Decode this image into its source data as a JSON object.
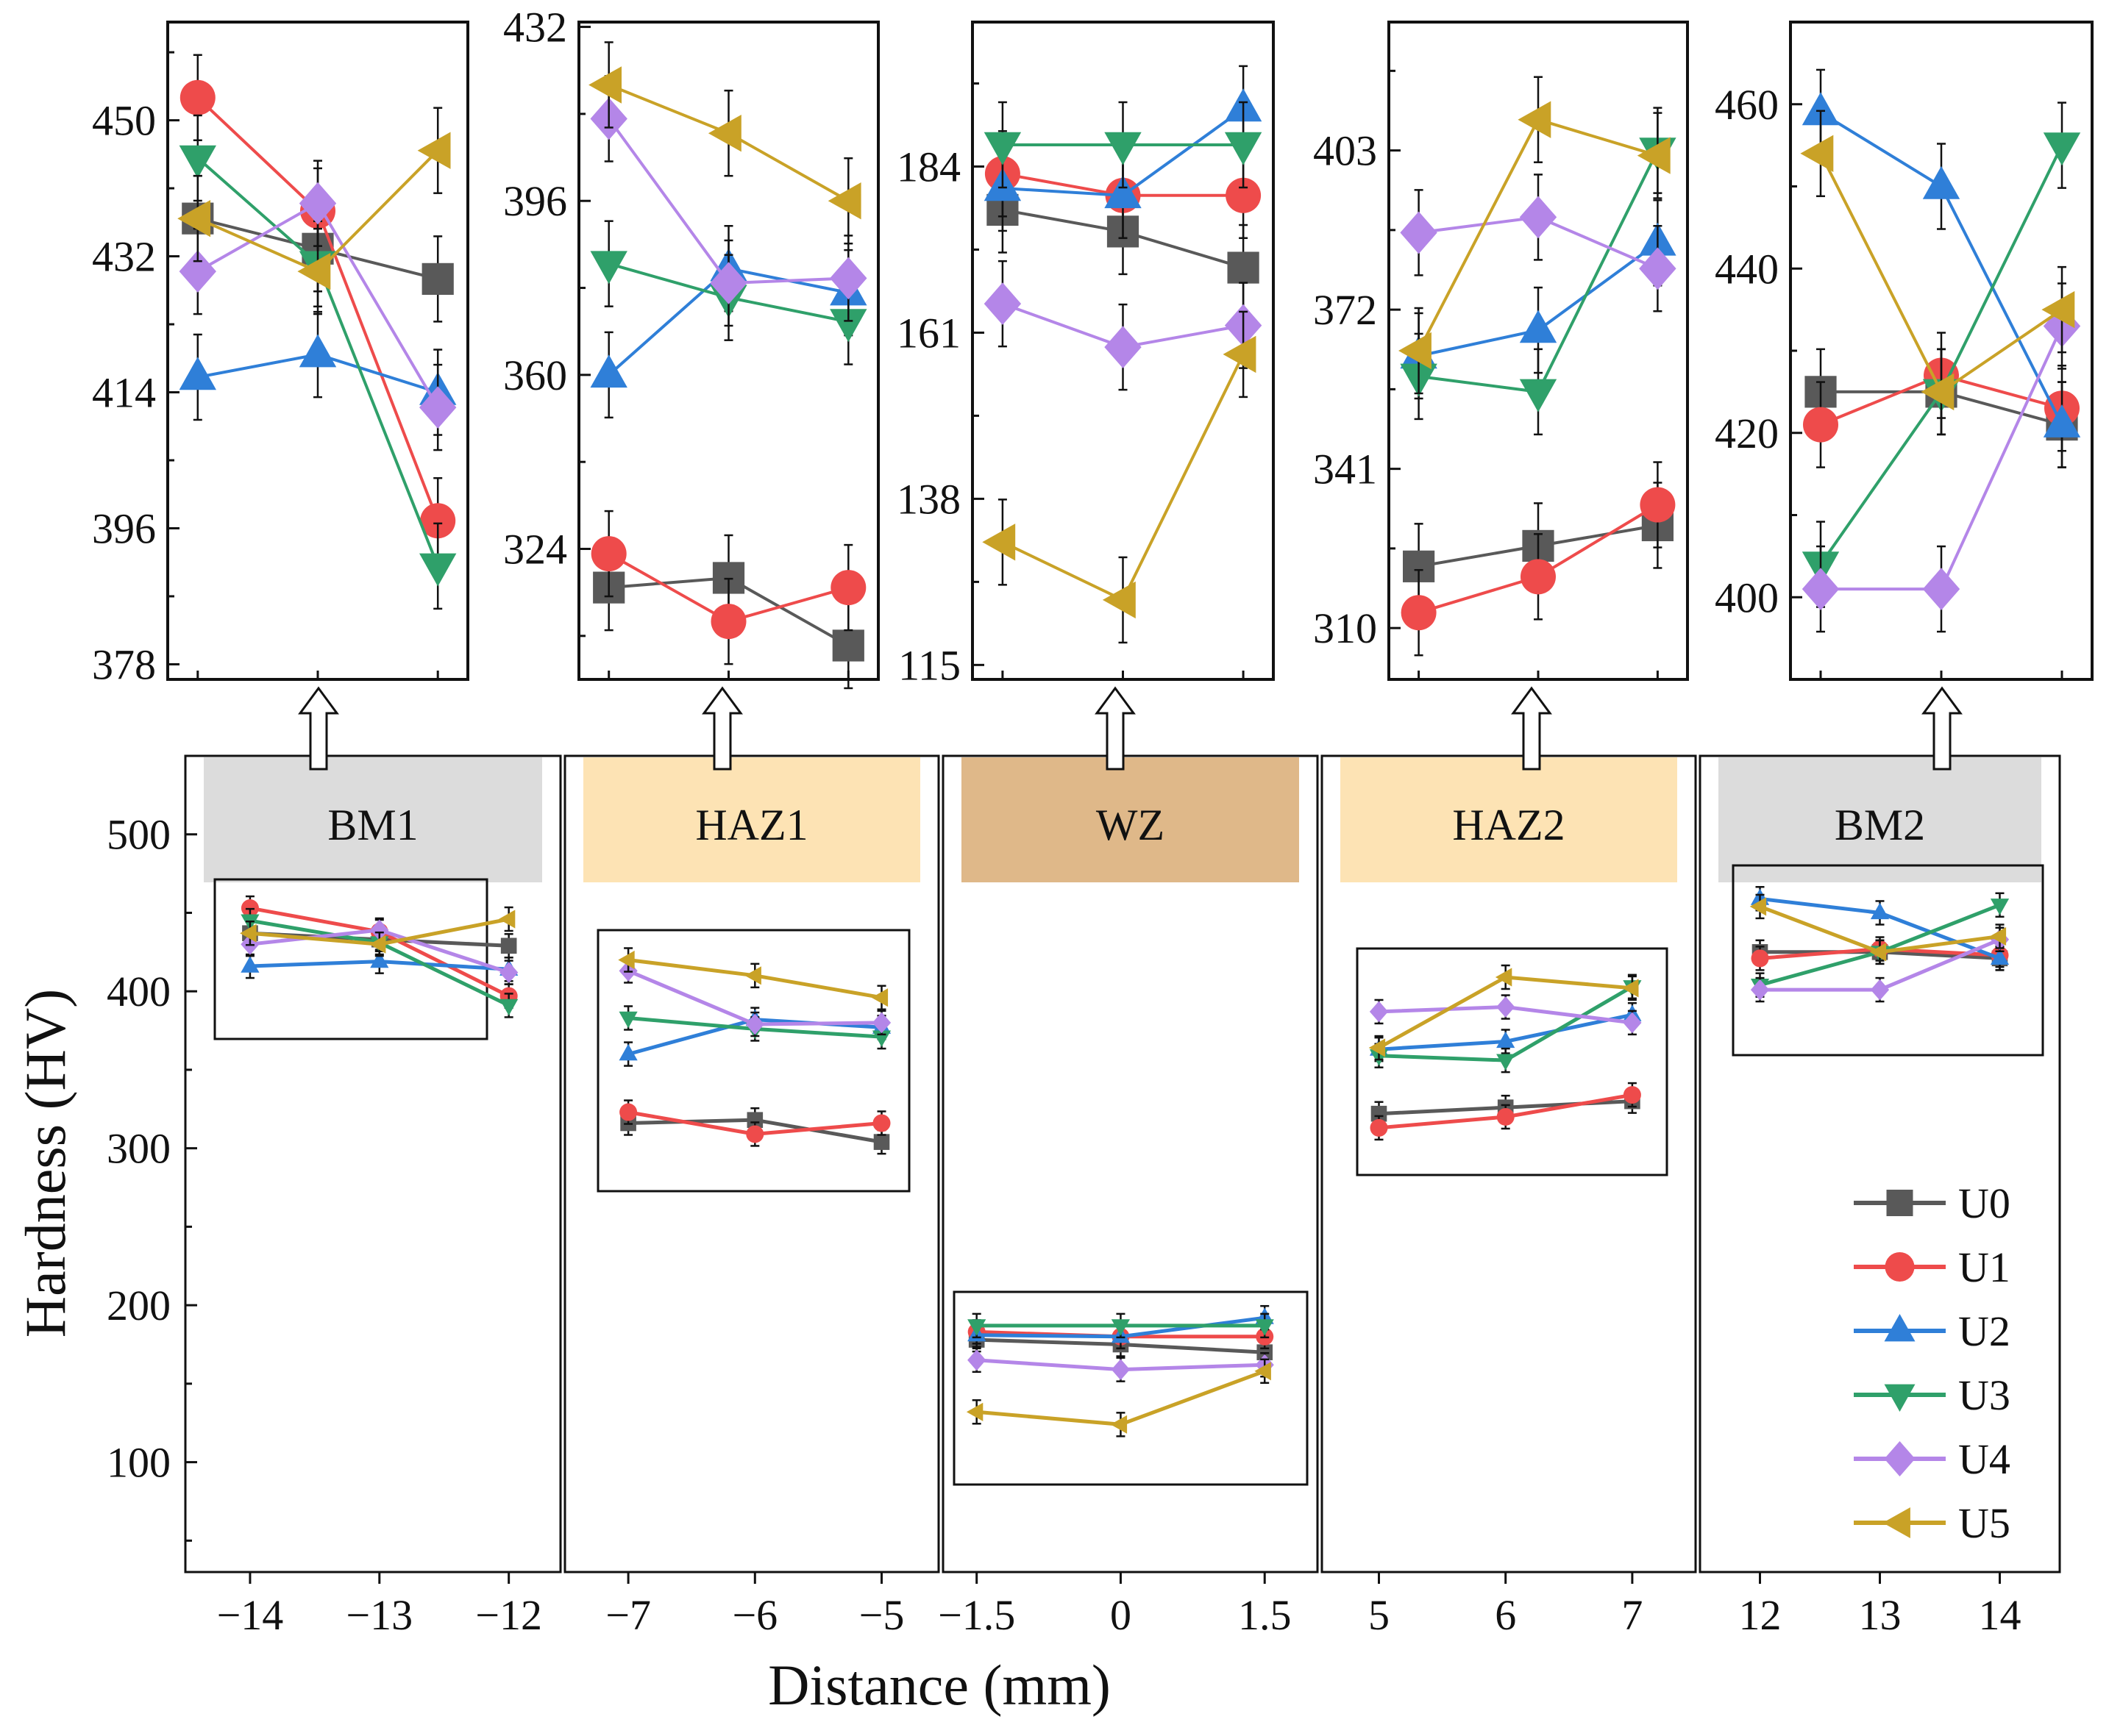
{
  "chart_data": {
    "type": "line",
    "y_label": "Hardness (HV)",
    "x_label": "Distance (mm)",
    "main_ylim": [
      30,
      550
    ],
    "main_yticks": [
      100,
      200,
      300,
      400,
      500
    ],
    "zones": [
      {
        "name": "BM1",
        "color": "#dcdcdc",
        "x": [
          -14,
          -13,
          -12
        ],
        "x_ticks": [
          "−14",
          "−13",
          "−12"
        ],
        "xlim": [
          -14.5,
          -11.6
        ]
      },
      {
        "name": "HAZ1",
        "color": "#fde3b4",
        "x": [
          -7,
          -6,
          -5
        ],
        "x_ticks": [
          "−7",
          "−6",
          "−5"
        ],
        "xlim": [
          -7.5,
          -4.55
        ]
      },
      {
        "name": "WZ",
        "color": "#dfb889",
        "x": [
          -1.5,
          0,
          1.5
        ],
        "x_ticks": [
          "−1.5",
          "0",
          "1.5"
        ],
        "xlim": [
          -1.85,
          2.05
        ]
      },
      {
        "name": "HAZ2",
        "color": "#fde3b4",
        "x": [
          5,
          6,
          7
        ],
        "x_ticks": [
          "5",
          "6",
          "7"
        ],
        "xlim": [
          4.55,
          7.5
        ]
      },
      {
        "name": "BM2",
        "color": "#dcdcdc",
        "x": [
          12,
          13,
          14
        ],
        "x_ticks": [
          "12",
          "13",
          "14"
        ],
        "xlim": [
          11.5,
          14.5
        ]
      }
    ],
    "series": [
      {
        "name": "U0",
        "color": "#595959",
        "marker": "square",
        "zones": [
          [
            437,
            433,
            429
          ],
          [
            316,
            318,
            304
          ],
          [
            178,
            175,
            170
          ],
          [
            322,
            326,
            330
          ],
          [
            425,
            425,
            421
          ]
        ]
      },
      {
        "name": "U1",
        "color": "#ee4b4b",
        "marker": "circle",
        "zones": [
          [
            453,
            438,
            397
          ],
          [
            323,
            309,
            316
          ],
          [
            183,
            180,
            180
          ],
          [
            313,
            320,
            334
          ],
          [
            421,
            427,
            423
          ]
        ]
      },
      {
        "name": "U2",
        "color": "#2f7fd8",
        "marker": "triangle-up",
        "zones": [
          [
            416,
            419,
            414
          ],
          [
            360,
            382,
            377
          ],
          [
            181,
            180,
            192
          ],
          [
            363,
            368,
            385
          ],
          [
            459,
            450,
            421
          ]
        ]
      },
      {
        "name": "U3",
        "color": "#2fa06a",
        "marker": "triangle-down",
        "zones": [
          [
            445,
            431,
            391
          ],
          [
            383,
            376,
            371
          ],
          [
            187,
            187,
            187
          ],
          [
            359,
            356,
            403
          ],
          [
            404,
            425,
            455
          ]
        ]
      },
      {
        "name": "U4",
        "color": "#b486e8",
        "marker": "diamond",
        "zones": [
          [
            430,
            439,
            412
          ],
          [
            413,
            379,
            380
          ],
          [
            165,
            159,
            162
          ],
          [
            387,
            390,
            380
          ],
          [
            401,
            401,
            433
          ]
        ]
      },
      {
        "name": "U5",
        "color": "#c9a227",
        "marker": "triangle-left",
        "zones": [
          [
            437,
            430,
            446
          ],
          [
            420,
            410,
            396
          ],
          [
            132,
            124,
            158
          ],
          [
            364,
            409,
            402
          ],
          [
            454,
            425,
            435
          ]
        ]
      }
    ],
    "insets": [
      {
        "zone": "BM1",
        "ylim": [
          376,
          463
        ],
        "yticks": [
          378,
          396,
          414,
          432,
          450
        ]
      },
      {
        "zone": "HAZ1",
        "ylim": [
          297,
          433
        ],
        "yticks": [
          324,
          360,
          396,
          432
        ]
      },
      {
        "zone": "WZ",
        "ylim": [
          113,
          204
        ],
        "yticks": [
          115,
          138,
          161,
          184
        ]
      },
      {
        "zone": "HAZ2",
        "ylim": [
          300,
          428
        ],
        "yticks": [
          310,
          341,
          372,
          403
        ]
      },
      {
        "zone": "BM2",
        "ylim": [
          390,
          470
        ],
        "yticks": [
          400,
          420,
          440,
          460
        ]
      }
    ],
    "legend_position": "bottom-right"
  }
}
